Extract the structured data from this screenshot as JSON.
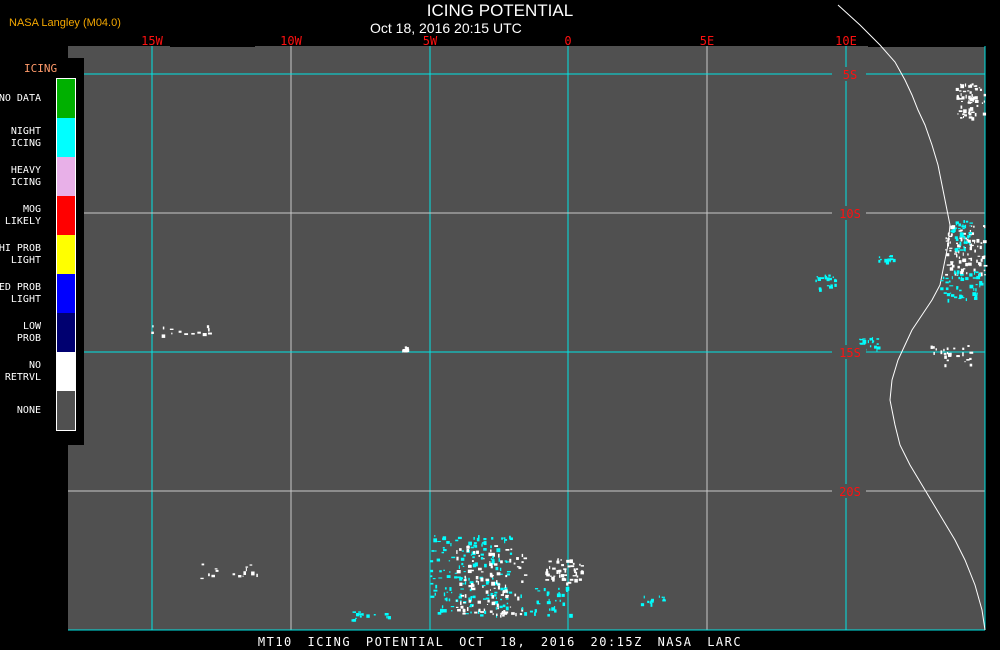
{
  "header": {
    "title": "ICING POTENTIAL",
    "timestamp": "Oct 18, 2016 20:15 UTC",
    "source": "NASA Langley (M04.0)"
  },
  "map": {
    "longitude_labels": [
      "15W",
      "10W",
      "5W",
      "0",
      "5E",
      "10E"
    ],
    "latitude_labels": [
      "5S",
      "10S",
      "15S",
      "20S"
    ],
    "grid_color": "#00e5e5",
    "background_color": "#505050",
    "coastline_color": "#ffffff"
  },
  "legend": {
    "title": "ICING",
    "items": [
      {
        "label": "NO DATA",
        "color": "#00b000"
      },
      {
        "label": "NIGHT\nICING",
        "color": "#00ffff"
      },
      {
        "label": "HEAVY\nICING",
        "color": "#e8b0e8"
      },
      {
        "label": "MOG\nLIKELY",
        "color": "#ff0000"
      },
      {
        "label": "HI PROB\nLIGHT",
        "color": "#ffff00"
      },
      {
        "label": "MED PROB\nLIGHT",
        "color": "#0000ff"
      },
      {
        "label": "LOW\nPROB",
        "color": "#000070"
      },
      {
        "label": "NO\nRETRVL",
        "color": "#ffffff"
      },
      {
        "label": "NONE",
        "color": "#505050"
      }
    ]
  },
  "footer": {
    "caption": "MT10  ICING POTENTIAL   OCT 18, 2016 20:15Z   NASA LARC"
  }
}
